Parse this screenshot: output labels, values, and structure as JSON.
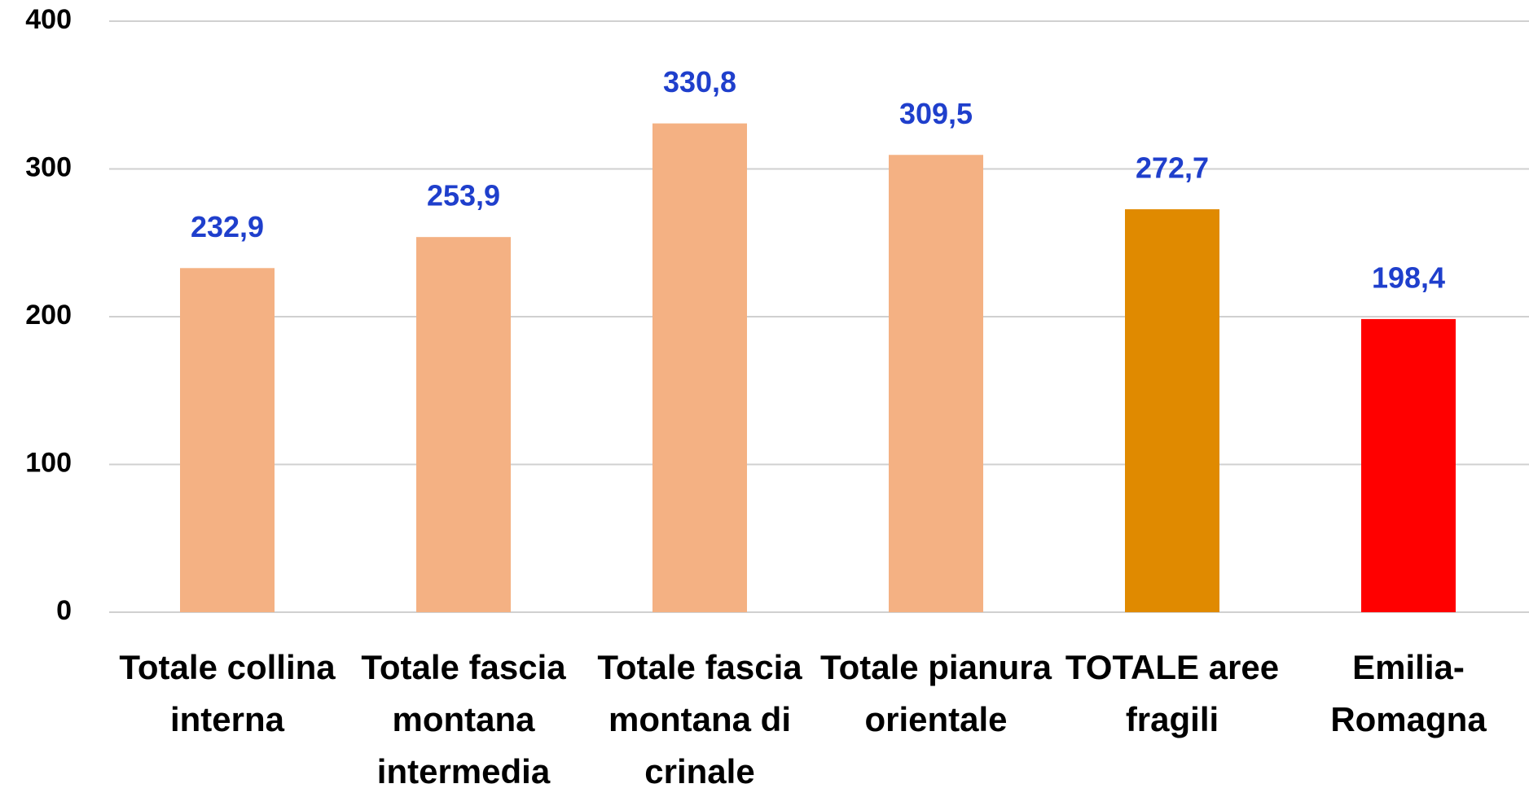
{
  "chart_data": {
    "type": "bar",
    "categories": [
      "Totale collina interna",
      "Totale fascia montana intermedia",
      "Totale fascia montana di crinale",
      "Totale pianura orientale",
      "TOTALE aree fragili",
      "Emilia-Romagna"
    ],
    "values": [
      232.9,
      253.9,
      330.8,
      309.5,
      272.7,
      198.4
    ],
    "value_labels": [
      "232,9",
      "253,9",
      "330,8",
      "309,5",
      "272,7",
      "198,4"
    ],
    "colors": [
      "#f4b183",
      "#f4b183",
      "#f4b183",
      "#f4b183",
      "#e08a00",
      "#ff0000"
    ],
    "value_label_color": "#1f3fcc",
    "ylim": [
      0,
      400
    ],
    "yticks": [
      0,
      100,
      200,
      300,
      400
    ],
    "grid": true
  }
}
